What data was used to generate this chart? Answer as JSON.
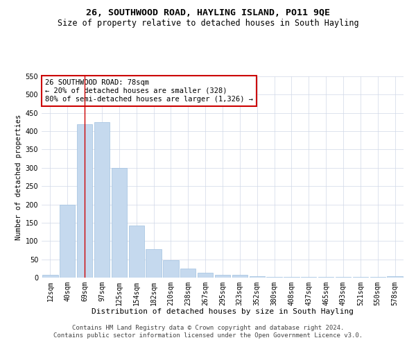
{
  "title": "26, SOUTHWOOD ROAD, HAYLING ISLAND, PO11 9QE",
  "subtitle": "Size of property relative to detached houses in South Hayling",
  "xlabel": "Distribution of detached houses by size in South Hayling",
  "ylabel": "Number of detached properties",
  "bar_color": "#c5d9ee",
  "bar_edge_color": "#a0c0e0",
  "categories": [
    "12sqm",
    "40sqm",
    "69sqm",
    "97sqm",
    "125sqm",
    "154sqm",
    "182sqm",
    "210sqm",
    "238sqm",
    "267sqm",
    "295sqm",
    "323sqm",
    "352sqm",
    "380sqm",
    "408sqm",
    "437sqm",
    "465sqm",
    "493sqm",
    "521sqm",
    "550sqm",
    "578sqm"
  ],
  "values": [
    8,
    200,
    420,
    425,
    300,
    143,
    78,
    48,
    25,
    13,
    8,
    7,
    3,
    2,
    2,
    1,
    1,
    1,
    1,
    1,
    3
  ],
  "ylim": [
    0,
    550
  ],
  "yticks": [
    0,
    50,
    100,
    150,
    200,
    250,
    300,
    350,
    400,
    450,
    500,
    550
  ],
  "vline_x": 2.0,
  "vline_color": "#cc0000",
  "annotation_text": "26 SOUTHWOOD ROAD: 78sqm\n← 20% of detached houses are smaller (328)\n80% of semi-detached houses are larger (1,326) →",
  "annotation_box_color": "#ffffff",
  "annotation_box_edge_color": "#cc0000",
  "footer_line1": "Contains HM Land Registry data © Crown copyright and database right 2024.",
  "footer_line2": "Contains public sector information licensed under the Open Government Licence v3.0.",
  "bg_color": "#ffffff",
  "grid_color": "#d0d8e8",
  "title_fontsize": 9.5,
  "subtitle_fontsize": 8.5,
  "xlabel_fontsize": 8,
  "ylabel_fontsize": 7.5,
  "tick_fontsize": 7,
  "annotation_fontsize": 7.5,
  "footer_fontsize": 6.5
}
